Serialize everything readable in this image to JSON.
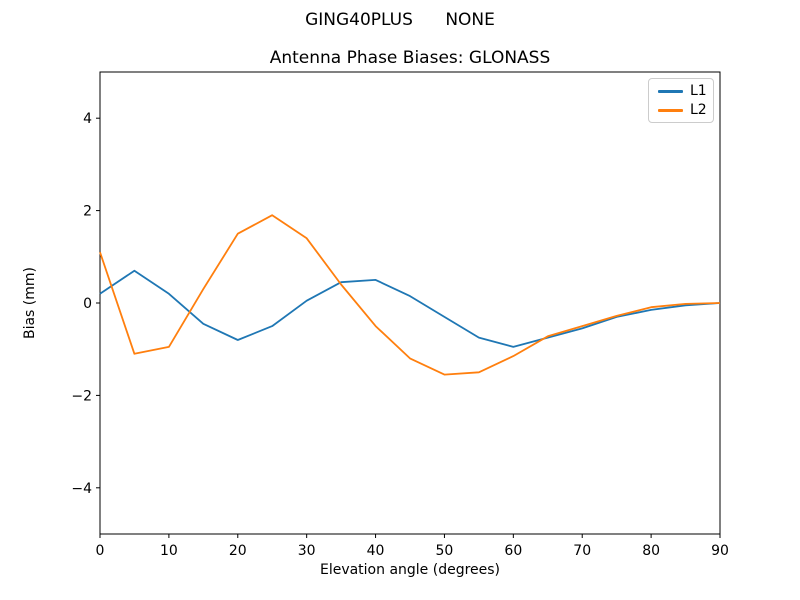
{
  "figure": {
    "suptitle": "GING40PLUS      NONE",
    "background_color": "#ffffff",
    "text_color": "#000000"
  },
  "chart_data": {
    "type": "line",
    "title": "Antenna Phase Biases: GLONASS",
    "xlabel": "Elevation angle (degrees)",
    "ylabel": "Bias (mm)",
    "xlim": [
      0,
      90
    ],
    "ylim": [
      -5,
      5
    ],
    "grid": false,
    "legend_position": "upper right",
    "axis_color": "#000000",
    "x": [
      0,
      5,
      10,
      15,
      20,
      25,
      30,
      35,
      40,
      45,
      50,
      55,
      60,
      65,
      70,
      75,
      80,
      85,
      90
    ],
    "series": [
      {
        "name": "L1",
        "color": "#1f77b4",
        "values": [
          0.2,
          0.7,
          0.2,
          -0.45,
          -0.8,
          -0.5,
          0.05,
          0.45,
          0.5,
          0.15,
          -0.3,
          -0.75,
          -0.95,
          -0.75,
          -0.55,
          -0.3,
          -0.15,
          -0.05,
          0.0
        ]
      },
      {
        "name": "L2",
        "color": "#ff7f0e",
        "values": [
          1.1,
          -1.1,
          -0.95,
          0.3,
          1.5,
          1.9,
          1.4,
          0.4,
          -0.5,
          -1.2,
          -1.55,
          -1.5,
          -1.15,
          -0.72,
          -0.5,
          -0.28,
          -0.09,
          -0.02,
          0.0
        ]
      }
    ],
    "xticks": {
      "values": [
        0,
        10,
        20,
        30,
        40,
        50,
        60,
        70,
        80,
        90
      ],
      "labels": [
        "0",
        "10",
        "20",
        "30",
        "40",
        "50",
        "60",
        "70",
        "80",
        "90"
      ]
    },
    "yticks": {
      "values": [
        -4,
        -2,
        0,
        2,
        4
      ],
      "labels": [
        "−4",
        "−2",
        "0",
        "2",
        "4"
      ]
    }
  }
}
